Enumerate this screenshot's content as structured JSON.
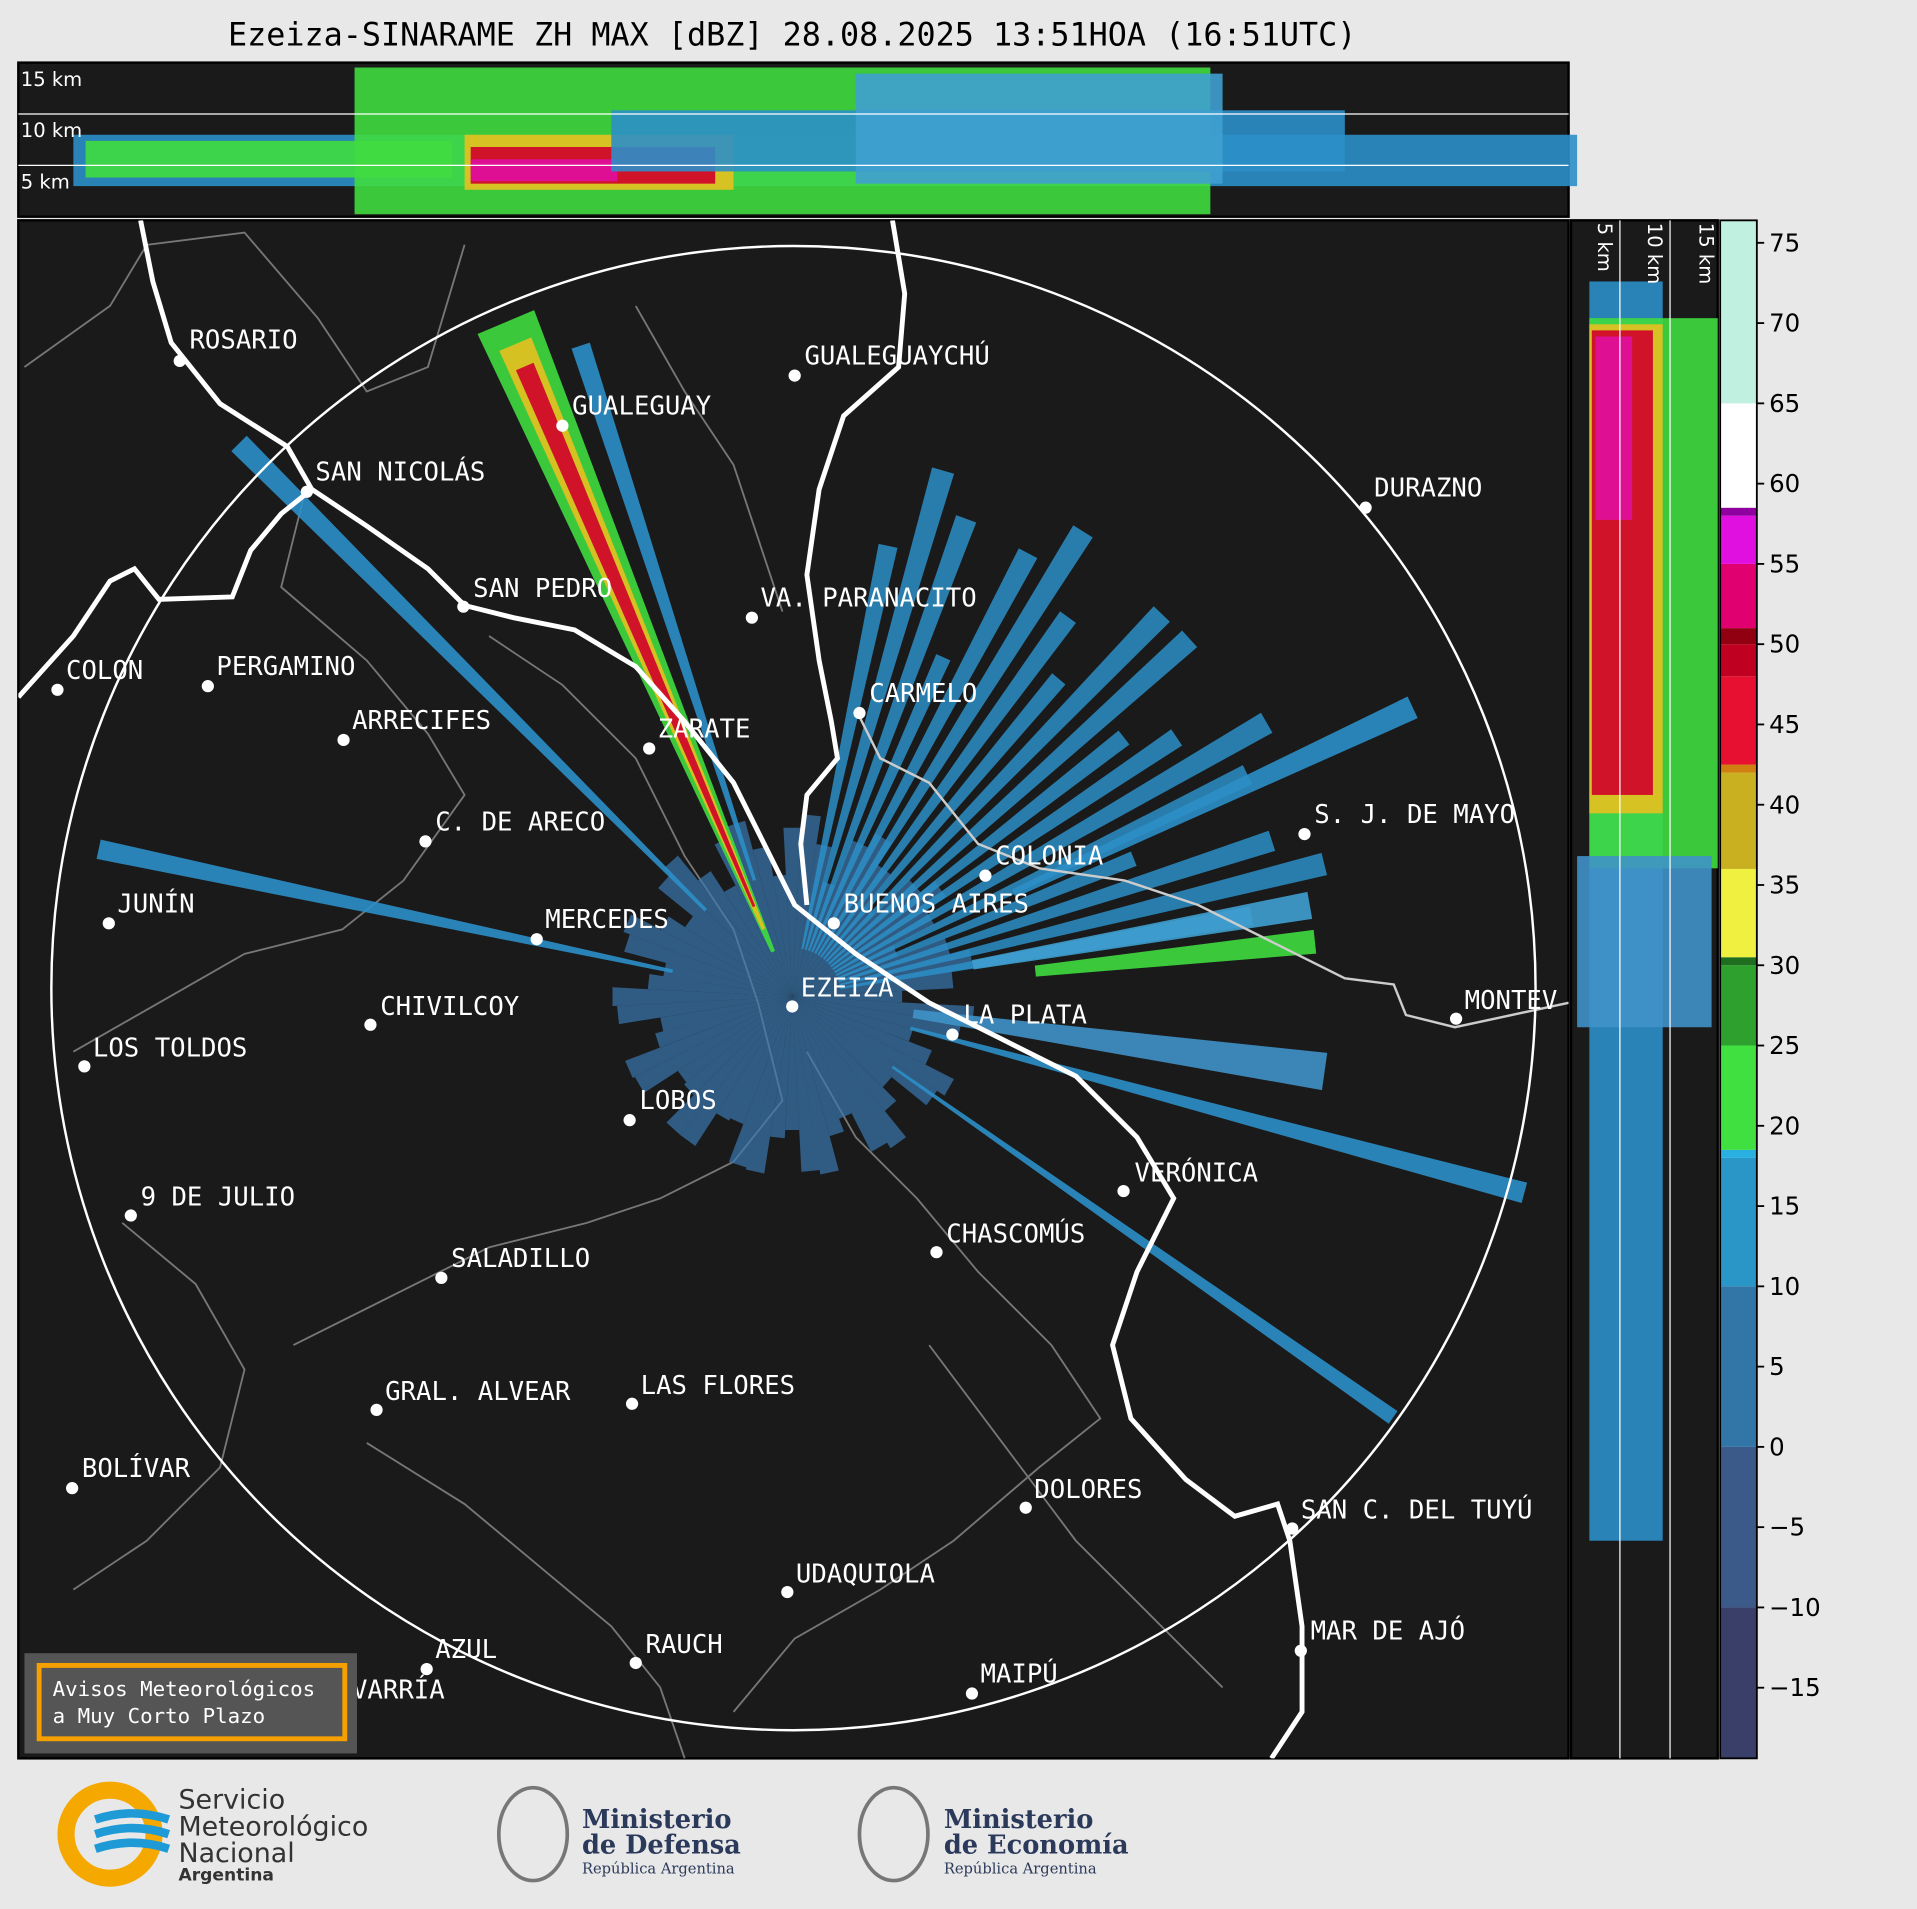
{
  "title": "Ezeiza-SINARAME ZH MAX [dBZ] 28.08.2025 13:51HOA (16:51UTC)",
  "top_panel": {
    "labels": [
      "15 km",
      "10 km",
      "5 km"
    ]
  },
  "side_panel": {
    "labels": [
      "5 km",
      "10 km",
      "15 km"
    ]
  },
  "cities": [
    "ROSARIO",
    "GUALEGUAYCHÚ",
    "GUALEGUAY",
    "SAN NICOLÁS",
    "DURAZNO",
    "SAN PEDRO",
    "VA. PARANACITO",
    "COLON",
    "PERGAMINO",
    "CARMELO",
    "ARRECIFES",
    "ZARATE",
    "S. J. DE MAYO",
    "C. DE ARECO",
    "COLONIA",
    "BUENOS AIRES",
    "JUNÍN",
    "MERCEDES",
    "EZEIZA",
    "MONTEV",
    "CHIVILCOY",
    "LA PLATA",
    "LOS TOLDOS",
    "LOBOS",
    "VERÓNICA",
    "9 DE JULIO",
    "CHASCOMÚS",
    "SALADILLO",
    "GRAL. ALVEAR",
    "LAS FLORES",
    "BOLÍVAR",
    "DOLORES",
    "SAN C. DEL TUYÚ",
    "UDAQUIOLA",
    "MAR DE AJÓ",
    "RAUCH",
    "AZUL",
    "OLAVARRÍA",
    "MAIPÚ"
  ],
  "colorbar": {
    "lim": [
      -19.4,
      76.4
    ],
    "ticks": [
      75,
      70,
      65,
      60,
      55,
      50,
      45,
      40,
      35,
      30,
      25,
      20,
      15,
      10,
      5,
      0,
      {
        "value": -5,
        "label": "−5"
      },
      {
        "value": -10,
        "label": "−10"
      },
      {
        "value": -15,
        "label": "−15"
      }
    ]
  },
  "notice": [
    "Avisos Meteorológicos",
    "a Muy Corto Plazo"
  ],
  "logos": {
    "smn": [
      "Servicio",
      "Meteorológico",
      "Nacional",
      "Argentina"
    ],
    "defensa": [
      "Ministerio",
      "de Defensa",
      "República Argentina"
    ],
    "economia": [
      "Ministerio",
      "de Economía",
      "República Argentina"
    ]
  }
}
